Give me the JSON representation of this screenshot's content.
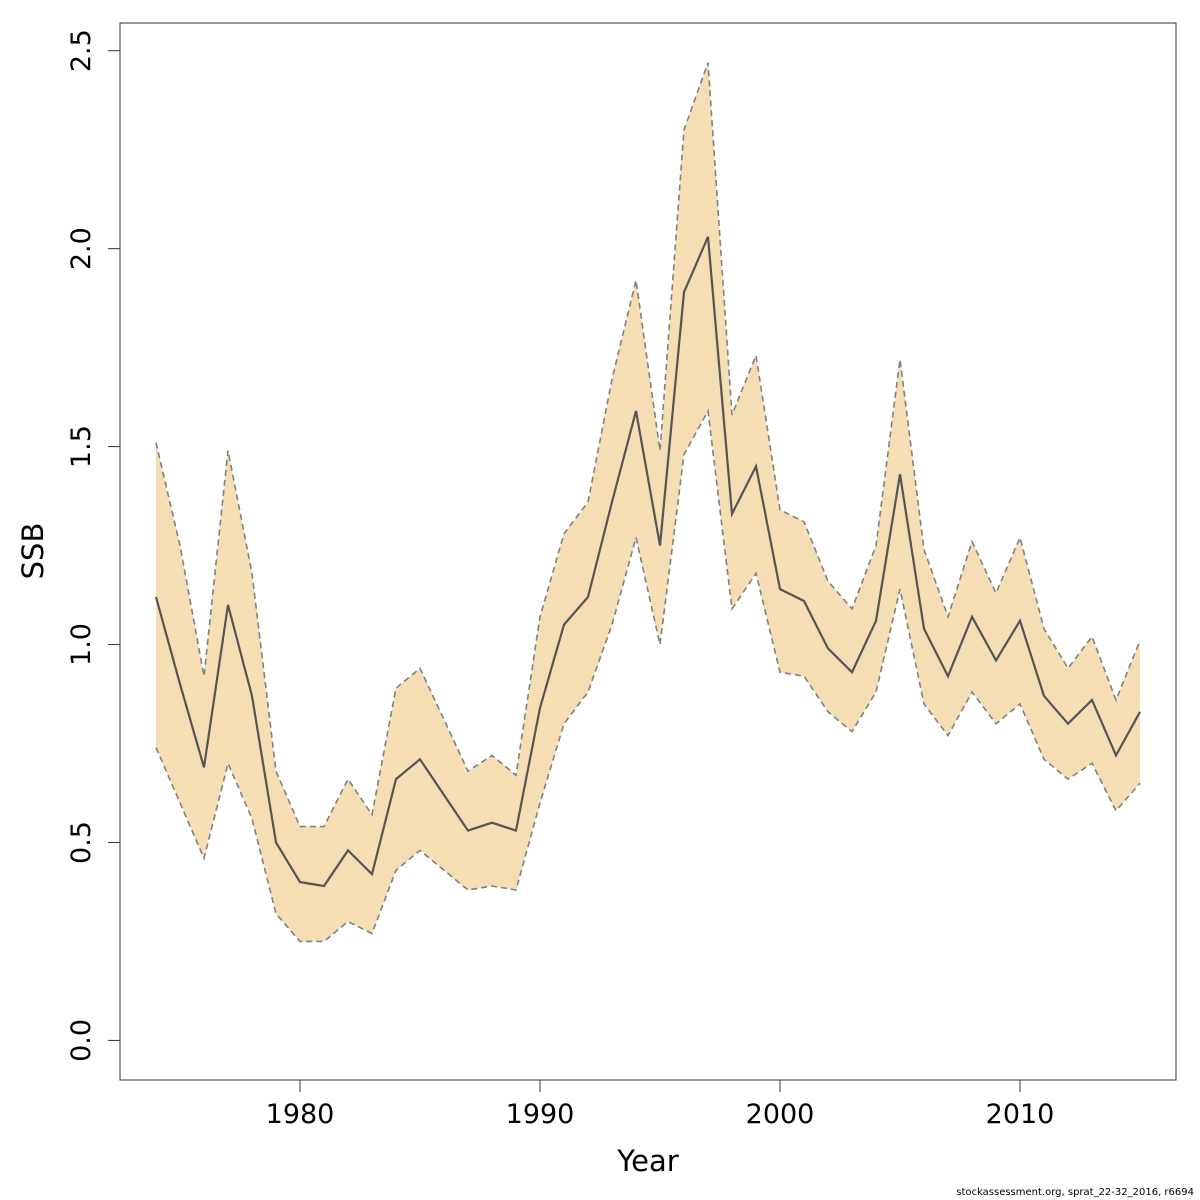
{
  "chart_data": {
    "type": "area",
    "xlabel": "Year",
    "ylabel": "SSB",
    "xlim": [
      1972.5,
      2016.5
    ],
    "ylim": [
      -0.1,
      2.57
    ],
    "x_ticks": [
      1980,
      1990,
      2000,
      2010
    ],
    "x_tick_labels": [
      "1980",
      "1990",
      "2000",
      "2010"
    ],
    "y_ticks": [
      0,
      0.5,
      1,
      1.5,
      2,
      2.5
    ],
    "y_tick_labels": [
      "0.0",
      "0.5",
      "1.0",
      "1.5",
      "2.0",
      "2.5"
    ],
    "grid": false,
    "legend": "none",
    "colors": {
      "band": "#f5deb3",
      "line": "#555555",
      "bound": "#808080"
    },
    "x": [
      1974,
      1975,
      1976,
      1977,
      1978,
      1979,
      1980,
      1981,
      1982,
      1983,
      1984,
      1985,
      1986,
      1987,
      1988,
      1989,
      1990,
      1991,
      1992,
      1993,
      1994,
      1995,
      1996,
      1997,
      1998,
      1999,
      2000,
      2001,
      2002,
      2003,
      2004,
      2005,
      2006,
      2007,
      2008,
      2009,
      2010,
      2011,
      2012,
      2013,
      2014,
      2015
    ],
    "series": [
      {
        "role": "estimate",
        "values": [
          1.12,
          0.9,
          0.69,
          1.1,
          0.87,
          0.5,
          0.4,
          0.39,
          0.48,
          0.42,
          0.66,
          0.71,
          0.62,
          0.53,
          0.55,
          0.53,
          0.84,
          1.05,
          1.12,
          1.36,
          1.59,
          1.25,
          1.89,
          2.03,
          1.33,
          1.45,
          1.14,
          1.11,
          0.99,
          0.93,
          1.06,
          1.43,
          1.04,
          0.92,
          1.07,
          0.96,
          1.06,
          0.87,
          0.8,
          0.86,
          0.72,
          0.83
        ]
      },
      {
        "role": "upper",
        "values": [
          1.51,
          1.25,
          0.92,
          1.49,
          1.18,
          0.68,
          0.54,
          0.54,
          0.66,
          0.57,
          0.89,
          0.94,
          0.81,
          0.68,
          0.72,
          0.67,
          1.07,
          1.28,
          1.36,
          1.67,
          1.92,
          1.49,
          2.3,
          2.47,
          1.58,
          1.73,
          1.34,
          1.31,
          1.16,
          1.09,
          1.25,
          1.72,
          1.24,
          1.07,
          1.26,
          1.13,
          1.27,
          1.04,
          0.94,
          1.02,
          0.86,
          1.01
        ]
      },
      {
        "role": "lower",
        "values": [
          0.74,
          0.6,
          0.46,
          0.7,
          0.56,
          0.32,
          0.25,
          0.25,
          0.3,
          0.27,
          0.43,
          0.48,
          0.43,
          0.38,
          0.39,
          0.38,
          0.6,
          0.8,
          0.88,
          1.05,
          1.27,
          1.0,
          1.48,
          1.59,
          1.09,
          1.18,
          0.93,
          0.92,
          0.83,
          0.78,
          0.88,
          1.14,
          0.85,
          0.77,
          0.88,
          0.8,
          0.85,
          0.71,
          0.66,
          0.7,
          0.58,
          0.65
        ]
      }
    ]
  },
  "footer": {
    "text": "stockassessment.org, sprat_22-32_2016, r6694"
  }
}
